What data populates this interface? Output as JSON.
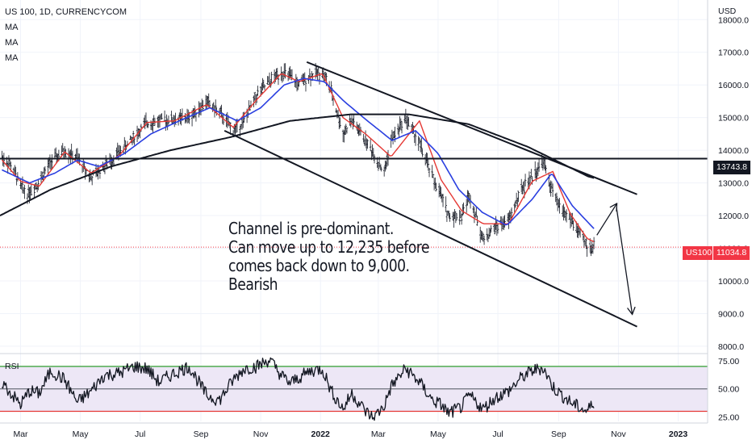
{
  "header": {
    "symbol_line": "US 100, 1D, CURRENCYCOM",
    "indicators": [
      "MA",
      "MA",
      "MA"
    ],
    "currency": "USD"
  },
  "annotation": {
    "lines": [
      "Channel is pre-dominant.",
      "Can move up to 12,235 before",
      "comes back down to 9,000.",
      "Bearish"
    ]
  },
  "price_tags": {
    "horizontal_level": "13743.8",
    "symbol": "US100",
    "last_price": "11034.8"
  },
  "colors": {
    "price_bars": "#131722",
    "ma_fast": "#e53935",
    "ma_mid": "#2a3fe0",
    "ma_slow": "#131722",
    "rsi_line": "#131722",
    "rsi_upper": "#2e9e2e",
    "rsi_lower": "#e53935",
    "rsi_mid": "#787b86",
    "rsi_band": "#ede7f6",
    "last_price_tag": "#f23645",
    "level_tag": "#131722",
    "grid": "#f0f3fa"
  },
  "chart_data": [
    {
      "type": "line",
      "title": "US 100, 1D, CURRENCYCOM",
      "y_axis_label": "USD",
      "y_ticks": [
        "18000.0",
        "17000.0",
        "16000.0",
        "15000.0",
        "14000.0",
        "13000.0",
        "12000.0",
        "11000.0",
        "10000.0",
        "9000.0",
        "8000.0"
      ],
      "y_range": [
        7800,
        18600
      ],
      "x_ticks": [
        "Mar",
        "May",
        "Jul",
        "Sep",
        "Nov",
        "2022",
        "Mar",
        "May",
        "Jul",
        "Sep",
        "Nov",
        "2023"
      ],
      "x_range": [
        "2021-02-08",
        "2023-01-31"
      ],
      "series": [
        {
          "name": "US 100",
          "style": "ohlc-bars",
          "x": [
            "2021-02-10",
            "2021-02-20",
            "2021-03-01",
            "2021-03-08",
            "2021-03-20",
            "2021-04-01",
            "2021-04-15",
            "2021-04-28",
            "2021-05-12",
            "2021-05-25",
            "2021-06-10",
            "2021-06-25",
            "2021-07-08",
            "2021-07-20",
            "2021-08-05",
            "2021-08-20",
            "2021-09-07",
            "2021-09-20",
            "2021-10-04",
            "2021-10-15",
            "2021-10-28",
            "2021-11-10",
            "2021-11-22",
            "2021-12-01",
            "2021-12-10",
            "2021-12-22",
            "2022-01-03",
            "2022-01-12",
            "2022-01-24",
            "2022-02-02",
            "2022-02-16",
            "2022-02-24",
            "2022-03-07",
            "2022-03-14",
            "2022-03-29",
            "2022-04-12",
            "2022-04-25",
            "2022-05-04",
            "2022-05-12",
            "2022-05-25",
            "2022-06-02",
            "2022-06-16",
            "2022-06-28",
            "2022-07-12",
            "2022-07-25",
            "2022-08-05",
            "2022-08-16",
            "2022-08-26",
            "2022-09-02",
            "2022-09-13",
            "2022-09-23",
            "2022-09-30",
            "2022-10-07"
          ],
          "values": [
            13800,
            13500,
            12900,
            12650,
            13050,
            13650,
            14000,
            13750,
            13150,
            13500,
            13950,
            14400,
            14850,
            14900,
            14950,
            15000,
            15500,
            15150,
            14600,
            14900,
            15700,
            16100,
            16400,
            16250,
            16000,
            16300,
            16400,
            15800,
            14500,
            14900,
            14300,
            13900,
            13300,
            14300,
            15000,
            14200,
            13200,
            12600,
            12000,
            12000,
            12650,
            11250,
            11650,
            11850,
            12800,
            13200,
            13650,
            12700,
            12250,
            11900,
            11400,
            11050,
            11034.8
          ]
        },
        {
          "name": "MA",
          "style": "red",
          "x": [
            "2021-02-10",
            "2021-03-01",
            "2021-03-20",
            "2021-04-15",
            "2021-05-12",
            "2021-06-10",
            "2021-07-08",
            "2021-08-05",
            "2021-09-07",
            "2021-10-04",
            "2021-10-28",
            "2021-11-22",
            "2021-12-10",
            "2022-01-03",
            "2022-01-24",
            "2022-02-16",
            "2022-03-14",
            "2022-04-12",
            "2022-05-04",
            "2022-05-25",
            "2022-06-16",
            "2022-07-12",
            "2022-08-05",
            "2022-08-26",
            "2022-09-13",
            "2022-09-30",
            "2022-10-07"
          ],
          "values": [
            13700,
            13050,
            12900,
            13950,
            13300,
            13850,
            14850,
            14900,
            15400,
            14700,
            15550,
            16350,
            16100,
            16350,
            15000,
            14500,
            13800,
            14900,
            13100,
            12150,
            11750,
            11750,
            13050,
            13350,
            12050,
            11300,
            11200
          ]
        },
        {
          "name": "MA",
          "style": "blue",
          "x": [
            "2021-02-10",
            "2021-03-10",
            "2021-04-05",
            "2021-04-28",
            "2021-05-20",
            "2021-06-15",
            "2021-07-12",
            "2021-08-10",
            "2021-09-10",
            "2021-10-08",
            "2021-11-01",
            "2021-11-25",
            "2021-12-15",
            "2022-01-05",
            "2022-01-25",
            "2022-02-18",
            "2022-03-15",
            "2022-04-08",
            "2022-05-01",
            "2022-05-22",
            "2022-06-15",
            "2022-07-10",
            "2022-08-05",
            "2022-08-25",
            "2022-09-15",
            "2022-10-07"
          ],
          "values": [
            13400,
            13000,
            13300,
            13700,
            13500,
            13900,
            14500,
            14900,
            15300,
            14900,
            15300,
            16000,
            16200,
            16100,
            15500,
            14900,
            14300,
            14600,
            13900,
            12800,
            12100,
            11700,
            12500,
            13300,
            12300,
            11600
          ]
        },
        {
          "name": "MA",
          "style": "black",
          "x": [
            "2021-02-08",
            "2021-04-01",
            "2021-06-01",
            "2021-08-01",
            "2021-10-01",
            "2021-12-01",
            "2022-02-01",
            "2022-04-01",
            "2022-06-01",
            "2022-08-01",
            "2022-10-01",
            "2022-10-07"
          ],
          "values": [
            12000,
            12800,
            13500,
            14000,
            14400,
            14900,
            15100,
            15100,
            14800,
            14100,
            13200,
            13150
          ]
        }
      ],
      "annotations": [
        {
          "kind": "channel-upper",
          "from": [
            "2021-12-18",
            16700
          ],
          "to": [
            "2022-11-20",
            12650
          ]
        },
        {
          "kind": "channel-lower",
          "from": [
            "2021-09-25",
            14600
          ],
          "to": [
            "2022-11-20",
            8600
          ]
        },
        {
          "kind": "horizontal-level",
          "value": 13743.8
        },
        {
          "kind": "arrow-up",
          "from": [
            "2022-10-10",
            11400
          ],
          "to": [
            "2022-10-30",
            12350
          ]
        },
        {
          "kind": "arrow-down",
          "from": [
            "2022-10-30",
            12250
          ],
          "to": [
            "2022-11-15",
            9000
          ]
        }
      ]
    },
    {
      "type": "line",
      "title": "RSI",
      "y_ticks": [
        "75.00",
        "50.00",
        "25.00"
      ],
      "y_range": [
        21,
        80
      ],
      "levels": [
        70,
        50,
        30
      ],
      "x_range": [
        "2021-02-08",
        "2023-01-31"
      ],
      "series": [
        {
          "name": "RSI",
          "x": [
            "2021-02-10",
            "2021-02-20",
            "2021-03-01",
            "2021-03-10",
            "2021-03-20",
            "2021-04-01",
            "2021-04-15",
            "2021-04-28",
            "2021-05-12",
            "2021-05-25",
            "2021-06-10",
            "2021-06-25",
            "2021-07-08",
            "2021-07-20",
            "2021-08-05",
            "2021-08-20",
            "2021-09-07",
            "2021-09-20",
            "2021-10-04",
            "2021-10-15",
            "2021-10-28",
            "2021-11-10",
            "2021-11-22",
            "2021-12-01",
            "2021-12-10",
            "2021-12-22",
            "2022-01-03",
            "2022-01-12",
            "2022-01-24",
            "2022-02-02",
            "2022-02-16",
            "2022-02-24",
            "2022-03-07",
            "2022-03-14",
            "2022-03-29",
            "2022-04-12",
            "2022-04-25",
            "2022-05-04",
            "2022-05-12",
            "2022-05-25",
            "2022-06-02",
            "2022-06-16",
            "2022-06-28",
            "2022-07-12",
            "2022-07-25",
            "2022-08-05",
            "2022-08-16",
            "2022-08-26",
            "2022-09-02",
            "2022-09-13",
            "2022-09-23",
            "2022-09-30",
            "2022-10-07"
          ],
          "values": [
            56,
            45,
            36,
            48,
            46,
            66,
            58,
            38,
            48,
            62,
            64,
            70,
            68,
            56,
            64,
            70,
            44,
            40,
            58,
            68,
            70,
            76,
            62,
            55,
            60,
            66,
            68,
            48,
            32,
            46,
            30,
            24,
            35,
            52,
            68,
            56,
            40,
            36,
            28,
            34,
            44,
            32,
            42,
            48,
            60,
            66,
            69,
            52,
            46,
            38,
            33,
            30,
            38
          ]
        }
      ]
    }
  ]
}
